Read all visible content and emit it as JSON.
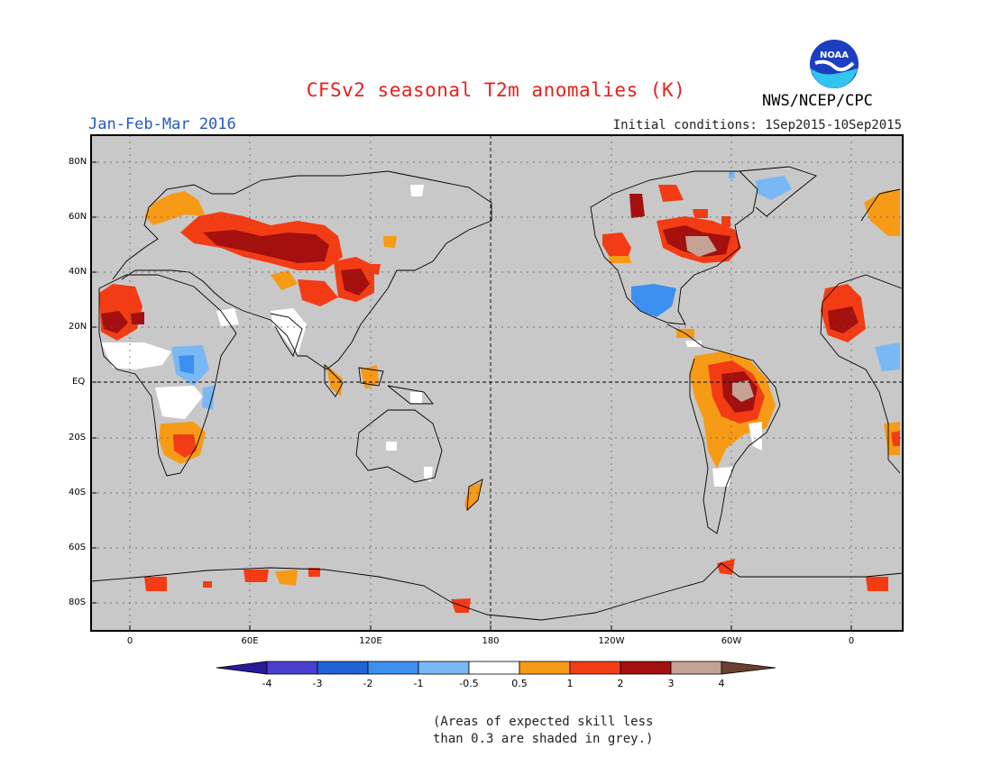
{
  "title": "CFSv2 seasonal T2m anomalies (K)",
  "period": "Jan-Feb-Mar 2016",
  "initial_conditions": "Initial conditions: 1Sep2015-10Sep2015",
  "agency": "NWS/NCEP/CPC",
  "logo_text": "NOAA",
  "lat_labels": [
    "80N",
    "60N",
    "40N",
    "20N",
    "EQ",
    "20S",
    "40S",
    "60S",
    "80S"
  ],
  "lon_labels": [
    "0",
    "60E",
    "120E",
    "180",
    "120W",
    "60W",
    "0"
  ],
  "colorbar": {
    "labels": [
      "-4",
      "-3",
      "-2",
      "-1",
      "-0.5",
      "0.5",
      "1",
      "2",
      "3",
      "4"
    ],
    "colors": [
      "#2a1a9a",
      "#4a3fd0",
      "#1f63d6",
      "#3d8fef",
      "#7ab8f5",
      "#ffffff",
      "#f79a16",
      "#f43c14",
      "#a3100e",
      "#c4a296",
      "#6b4030"
    ]
  },
  "colors": {
    "ocean_grey": "#c8c8c8",
    "no_skill": "#c8c8c8"
  },
  "note_line1": "(Areas of expected skill less",
  "note_line2": "than 0.3 are shaded in grey.)"
}
